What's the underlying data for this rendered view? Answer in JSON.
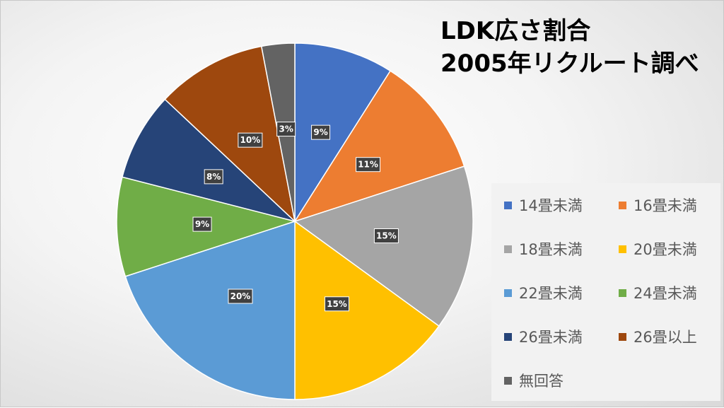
{
  "chart_data": {
    "type": "pie",
    "title": [
      "LDK広さ割合",
      "2005年リクルート調べ"
    ],
    "legend_position": "right",
    "slices": [
      {
        "name": "14畳未満",
        "value": 9,
        "label": "9%",
        "color": "#4472C4"
      },
      {
        "name": "16畳未満",
        "value": 11,
        "label": "11%",
        "color": "#ED7D31"
      },
      {
        "name": "18畳未満",
        "value": 15,
        "label": "15%",
        "color": "#A5A5A5"
      },
      {
        "name": "20畳未満",
        "value": 15,
        "label": "15%",
        "color": "#FFC000"
      },
      {
        "name": "22畳未満",
        "value": 20,
        "label": "20%",
        "color": "#5B9BD5"
      },
      {
        "name": "24畳未満",
        "value": 9,
        "label": "9%",
        "color": "#70AD47"
      },
      {
        "name": "26畳未満",
        "value": 8,
        "label": "8%",
        "color": "#264478"
      },
      {
        "name": "26畳以上",
        "value": 10,
        "label": "10%",
        "color": "#9E480E"
      },
      {
        "name": "無回答",
        "value": 3,
        "label": "3%",
        "color": "#636363"
      }
    ]
  }
}
